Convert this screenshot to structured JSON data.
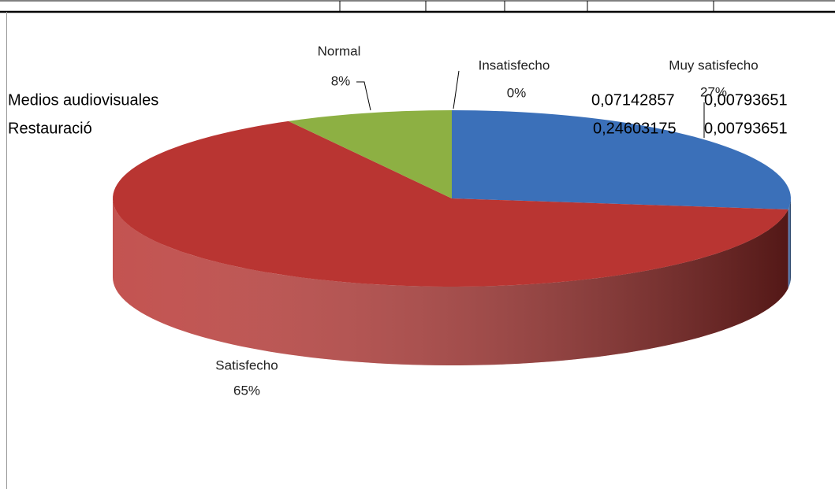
{
  "chart_data": {
    "type": "pie3d",
    "categories": [
      "Muy satisfecho",
      "Satisfecho",
      "Normal",
      "Insatisfecho"
    ],
    "values": [
      27,
      65,
      8,
      0
    ],
    "value_labels": [
      "27%",
      "65%",
      "8%",
      "0%"
    ],
    "colors": [
      "#3b70b9",
      "#b93532",
      "#8db043",
      "#7a5ea6"
    ]
  },
  "cells": [
    "Medios audiovisuales",
    "Restauració",
    "0,07142857",
    "0,00793651",
    "0,24603175",
    "0,00793651"
  ]
}
